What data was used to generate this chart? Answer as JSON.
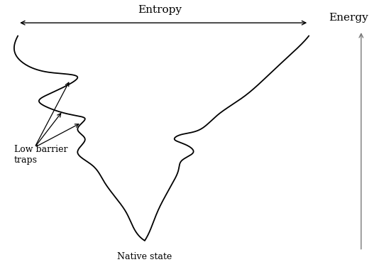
{
  "entropy_label": "Entropy",
  "energy_label": "Energy",
  "native_state_label": "Native state",
  "low_barrier_label": "Low barrier\ntraps",
  "bg_color": "#ffffff",
  "line_color": "#000000",
  "figsize": [
    5.34,
    3.76
  ],
  "dpi": 100
}
